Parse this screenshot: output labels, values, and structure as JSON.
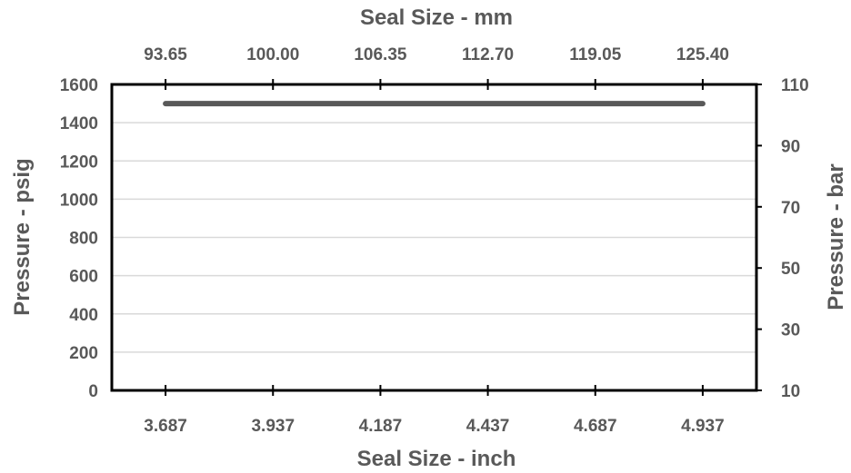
{
  "chart_data": {
    "type": "line",
    "title": "",
    "xlabel": "Seal Size - inch",
    "x2label": "Seal Size - mm",
    "ylabel": "Pressure - psig",
    "y2label": "Pressure - bar",
    "x_ticks": [
      "3.687",
      "3.937",
      "4.187",
      "4.437",
      "4.687",
      "4.937"
    ],
    "x2_ticks": [
      "93.65",
      "100.00",
      "106.35",
      "112.70",
      "119.05",
      "125.40"
    ],
    "y_ticks": [
      "0",
      "200",
      "400",
      "600",
      "800",
      "1000",
      "1200",
      "1400",
      "1600"
    ],
    "y2_ticks": [
      "10",
      "30",
      "50",
      "70",
      "90",
      "110"
    ],
    "xlim": [
      3.562,
      5.062
    ],
    "ylim": [
      0,
      1600
    ],
    "y2lim": [
      10,
      110
    ],
    "grid": true,
    "series": [
      {
        "name": "",
        "x": [
          3.687,
          4.937
        ],
        "y": [
          1500,
          1500
        ],
        "color": "#595959"
      }
    ],
    "colors": {
      "axis": "#000000",
      "grid": "#d9d9d9",
      "text": "#595959",
      "line": "#595959"
    }
  }
}
